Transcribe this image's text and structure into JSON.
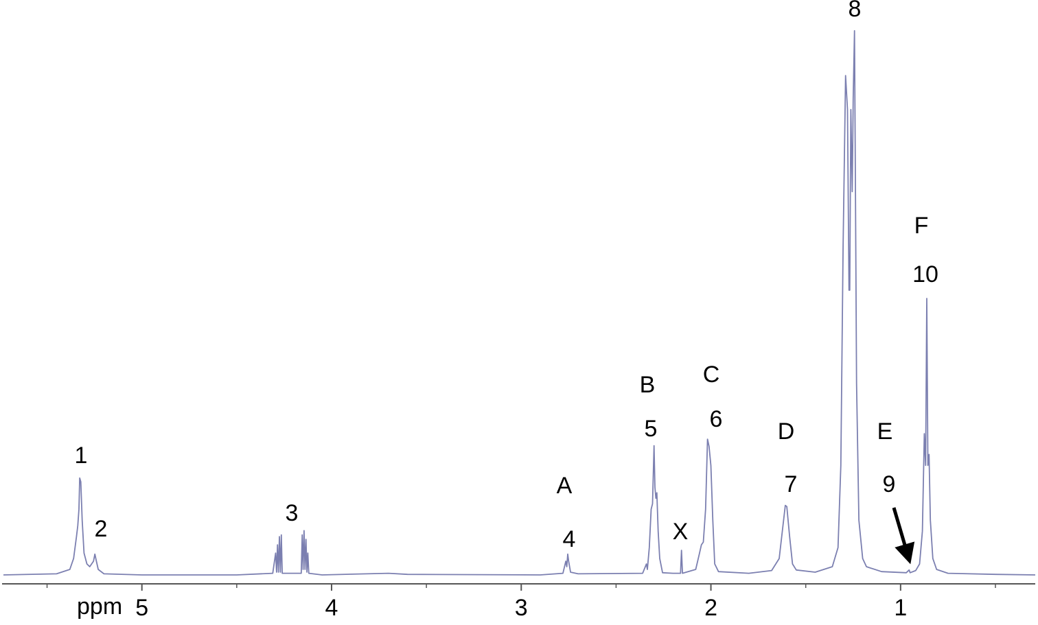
{
  "chart_data": {
    "type": "line",
    "xlabel": "ppm",
    "x_reversed": true,
    "xlim": [
      5.73,
      0.29
    ],
    "xticks": [
      5,
      4,
      3,
      2,
      1
    ],
    "xminor_ticks": [
      5.5,
      4.5,
      3.5,
      2.5,
      1.5,
      0.5
    ],
    "ylim": [
      0,
      100
    ],
    "color": "#7b7fb0",
    "x": [
      5.73,
      5.45,
      5.38,
      5.36,
      5.345,
      5.338,
      5.332,
      5.328,
      5.322,
      5.315,
      5.305,
      5.29,
      5.275,
      5.255,
      5.248,
      5.24,
      5.23,
      5.2,
      5.0,
      4.5,
      4.31,
      4.295,
      4.29,
      4.285,
      4.28,
      4.275,
      4.27,
      4.265,
      4.26,
      4.16,
      4.155,
      4.15,
      4.145,
      4.14,
      4.135,
      4.13,
      4.125,
      4.12,
      4.05,
      3.7,
      3.6,
      2.9,
      2.78,
      2.765,
      2.76,
      2.755,
      2.75,
      2.74,
      2.7,
      2.36,
      2.34,
      2.335,
      2.325,
      2.315,
      2.308,
      2.3,
      2.295,
      2.29,
      2.285,
      2.278,
      2.27,
      2.255,
      2.2,
      2.16,
      2.155,
      2.15,
      2.08,
      2.06,
      2.05,
      2.04,
      2.028,
      2.018,
      2.01,
      2.0,
      1.99,
      1.98,
      1.96,
      1.8,
      1.68,
      1.64,
      1.62,
      1.608,
      1.6,
      1.585,
      1.57,
      1.55,
      1.45,
      1.36,
      1.33,
      1.315,
      1.303,
      1.29,
      1.28,
      1.272,
      1.268,
      1.262,
      1.255,
      1.25,
      1.243,
      1.238,
      1.232,
      1.22,
      1.2,
      1.18,
      1.1,
      0.97,
      0.955,
      0.95,
      0.92,
      0.9,
      0.885,
      0.875,
      0.868,
      0.862,
      0.856,
      0.85,
      0.843,
      0.83,
      0.81,
      0.75,
      0.5,
      0.29
    ],
    "values": [
      0,
      0.2,
      1,
      3,
      7,
      9,
      12,
      17.7,
      17,
      10,
      4,
      2,
      1.5,
      2.5,
      3.8,
      2.5,
      1,
      0.2,
      0,
      0,
      0.3,
      4,
      0.5,
      5.5,
      0.5,
      7,
      0.5,
      7.3,
      0.3,
      0.3,
      7.3,
      1,
      8.1,
      1,
      6.5,
      0.5,
      4,
      0.3,
      0,
      0.3,
      0.1,
      0,
      0.3,
      2.5,
      1.5,
      3.8,
      2.5,
      0.5,
      0.2,
      0.3,
      2,
      1,
      5,
      12,
      13,
      23.6,
      16,
      14,
      15,
      8,
      3,
      0.4,
      0.3,
      0.3,
      4.5,
      0.3,
      1,
      4,
      5.5,
      6,
      12,
      24.8,
      23.5,
      20,
      10,
      2,
      0.6,
      0.3,
      0.8,
      3,
      9,
      12.7,
      12.5,
      7,
      2,
      0.9,
      0.5,
      1.5,
      5,
      20,
      60,
      91.2,
      85,
      52,
      52,
      85,
      70,
      87,
      99.4,
      70,
      35,
      10,
      3,
      1.5,
      0.6,
      0.4,
      0.9,
      0.4,
      0.8,
      2,
      8,
      25.8,
      20,
      50.5,
      20,
      22,
      10,
      3,
      1,
      0.3,
      0.1,
      0
    ],
    "peak_labels": [
      "1",
      "2",
      "3",
      "A",
      "4",
      "B",
      "5",
      "X",
      "C",
      "6",
      "D",
      "7",
      "8",
      "E",
      "9",
      "F",
      "10"
    ]
  }
}
